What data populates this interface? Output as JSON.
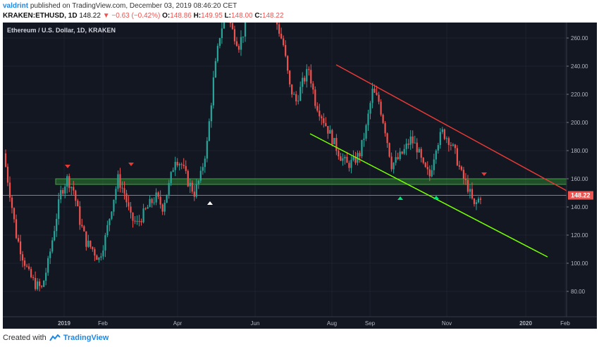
{
  "header": {
    "user": "valdrint",
    "published": "published on TradingView.com, December 03, 2019 08:46:20 CET"
  },
  "quote": {
    "symbol": "KRAKEN:ETHUSD, 1D",
    "last": "148.22",
    "change": "−0.63 (−0.42%)",
    "o_label": "O:",
    "o": "148.86",
    "h_label": "H:",
    "h": "149.95",
    "l_label": "L:",
    "l": "148.00",
    "c_label": "C:",
    "c": "148.22"
  },
  "legend": "Ethereum / U.S. Dollar, 1D, KRAKEN",
  "price_axis": {
    "ticks": [
      "260.00",
      "240.00",
      "220.00",
      "200.00",
      "180.00",
      "160.00",
      "140.00",
      "120.00",
      "100.00",
      "80.00"
    ],
    "tick_values": [
      260,
      240,
      220,
      200,
      180,
      160,
      140,
      120,
      100,
      80
    ],
    "current_price_label": "148.22",
    "current_price": 148.22
  },
  "time_axis": {
    "labels": [
      "2019",
      "Feb",
      "Apr",
      "Jun",
      "Aug",
      "Sep",
      "Nov",
      "2020",
      "Feb"
    ]
  },
  "footer": {
    "created": "Created with",
    "brand": "TradingView"
  },
  "colors": {
    "bg": "#131722",
    "up": "#26a69a",
    "down": "#ef5350",
    "channel_top": "#e53935",
    "channel_bottom": "#76ff03",
    "support_zone": "#2e7d32",
    "price_line": "#ef5350"
  },
  "chart_data": {
    "type": "candlestick",
    "title": "Ethereum / U.S. Dollar, 1D, KRAKEN",
    "ylim": [
      65,
      272
    ],
    "support_zone": [
      156,
      160
    ],
    "series": [
      {
        "name": "ETHUSD",
        "closes": [
          178,
          150,
          120,
          105,
          92,
          85,
          82,
          100,
          125,
          150,
          160,
          152,
          130,
          115,
          110,
          103,
          118,
          140,
          160,
          150,
          132,
          128,
          135,
          142,
          147,
          140,
          155,
          175,
          170,
          158,
          150,
          162,
          185,
          230,
          262,
          280,
          265,
          255,
          268,
          285,
          295,
          300,
          290,
          270,
          255,
          225,
          215,
          228,
          238,
          215,
          205,
          195,
          185,
          176,
          170,
          172,
          178,
          196,
          222,
          215,
          195,
          170,
          174,
          180,
          188,
          182,
          168,
          162,
          184,
          193,
          188,
          178,
          163,
          154,
          140,
          148
        ]
      }
    ]
  }
}
